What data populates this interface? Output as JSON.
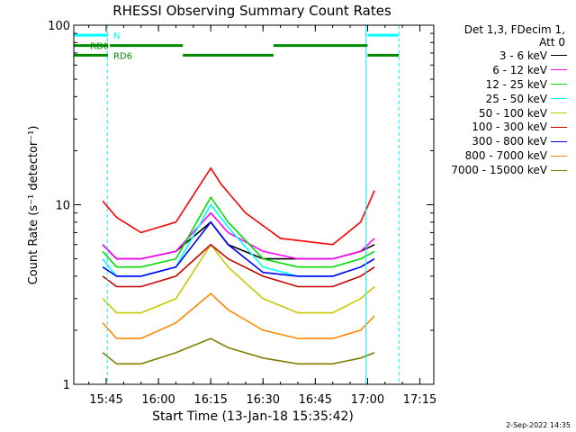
{
  "chart_data": {
    "type": "line",
    "title": "RHESSI Observing Summary Count Rates",
    "xlabel": "Start Time (13-Jan-18 15:35:42)",
    "ylabel": "Count Rate (s⁻¹ detector⁻¹)",
    "y_scale": "log",
    "ylim": [
      1,
      100
    ],
    "xlim": [
      "15:35:42",
      "17:19:00"
    ],
    "x_ticks": [
      "15:45",
      "16:00",
      "16:15",
      "16:30",
      "16:45",
      "17:00",
      "17:15"
    ],
    "y_ticks": [
      "1",
      "10",
      "100"
    ],
    "grid": false,
    "legend_position": "right",
    "legend_header": [
      "Det 1,3, FDecim 1,",
      "Att 0"
    ],
    "series": [
      {
        "name": "3 - 6 keV",
        "color": "#000000",
        "x": [
          "15:44",
          "15:48",
          "15:55",
          "16:05",
          "16:15",
          "16:20",
          "16:30",
          "16:40",
          "16:50",
          "16:58",
          "17:02"
        ],
        "values": [
          6,
          5,
          5,
          5.5,
          8,
          6,
          5,
          5,
          5,
          5.5,
          6
        ]
      },
      {
        "name": "6 - 12 keV",
        "color": "#ff00ff",
        "x": [
          "15:44",
          "15:48",
          "15:55",
          "16:05",
          "16:15",
          "16:20",
          "16:30",
          "16:40",
          "16:50",
          "16:58",
          "17:02"
        ],
        "values": [
          6,
          5,
          5,
          5.5,
          9,
          7,
          5.5,
          5,
          5,
          5.5,
          6.5
        ]
      },
      {
        "name": "12 - 25 keV",
        "color": "#00dd00",
        "x": [
          "15:44",
          "15:48",
          "15:55",
          "16:05",
          "16:15",
          "16:20",
          "16:30",
          "16:40",
          "16:50",
          "16:58",
          "17:02"
        ],
        "values": [
          5.5,
          4.5,
          4.5,
          5,
          11,
          8,
          5,
          4.5,
          4.5,
          5,
          5.5
        ]
      },
      {
        "name": "25 - 50 keV",
        "color": "#00ffff",
        "x": [
          "15:44",
          "15:48",
          "15:55",
          "16:05",
          "16:15",
          "16:20",
          "16:30",
          "16:40",
          "16:50",
          "16:58",
          "17:02"
        ],
        "values": [
          5,
          4,
          4,
          4.5,
          10,
          7.5,
          4.5,
          4,
          4,
          4.5,
          5
        ]
      },
      {
        "name": "50 - 100 keV",
        "color": "#c8c800",
        "x": [
          "15:44",
          "15:48",
          "15:55",
          "16:05",
          "16:15",
          "16:20",
          "16:30",
          "16:40",
          "16:50",
          "16:58",
          "17:02"
        ],
        "values": [
          3,
          2.5,
          2.5,
          3,
          6,
          4.5,
          3,
          2.5,
          2.5,
          3,
          3.5
        ]
      },
      {
        "name": "100 - 300 keV",
        "color": "#cc0000",
        "x": [
          "15:44",
          "15:48",
          "15:55",
          "16:05",
          "16:15",
          "16:20",
          "16:30",
          "16:40",
          "16:50",
          "16:58",
          "17:02"
        ],
        "values": [
          4,
          3.5,
          3.5,
          4,
          6,
          5,
          4,
          3.5,
          3.5,
          4,
          4.5
        ]
      },
      {
        "name": "300 - 800 keV",
        "color": "#0000ff",
        "x": [
          "15:44",
          "15:48",
          "15:55",
          "16:05",
          "16:15",
          "16:20",
          "16:30",
          "16:40",
          "16:50",
          "16:58",
          "17:02"
        ],
        "values": [
          4.5,
          4,
          4,
          4.5,
          8,
          6,
          4.2,
          4,
          4,
          4.5,
          5
        ]
      },
      {
        "name": "800 - 7000 keV",
        "color": "#ff8800",
        "x": [
          "15:44",
          "15:48",
          "15:55",
          "16:05",
          "16:15",
          "16:20",
          "16:30",
          "16:40",
          "16:50",
          "16:58",
          "17:02"
        ],
        "values": [
          2.2,
          1.8,
          1.8,
          2.2,
          3.2,
          2.6,
          2,
          1.8,
          1.8,
          2,
          2.4
        ]
      },
      {
        "name": "7000 - 15000 keV",
        "color": "#808000",
        "x": [
          "15:44",
          "15:48",
          "15:55",
          "16:05",
          "16:15",
          "16:20",
          "16:30",
          "16:40",
          "16:50",
          "16:58",
          "17:02"
        ],
        "values": [
          1.5,
          1.3,
          1.3,
          1.5,
          1.8,
          1.6,
          1.4,
          1.3,
          1.3,
          1.4,
          1.5
        ]
      },
      {
        "name": "",
        "color": "#ff0000",
        "x": [
          "15:44",
          "15:48",
          "15:55",
          "16:05",
          "16:12",
          "16:15",
          "16:18",
          "16:25",
          "16:35",
          "16:50",
          "16:58",
          "17:02"
        ],
        "values": [
          10.5,
          8.5,
          7,
          8,
          13,
          16,
          13,
          9,
          6.5,
          6,
          8,
          12
        ]
      }
    ],
    "annotations": [
      {
        "label": "N",
        "color": "#00ffff",
        "segments": [
          [
            "15:35:42",
            "15:45:30"
          ],
          [
            "17:00:00",
            "17:09:00"
          ]
        ],
        "y": 88
      },
      {
        "label": "RD0",
        "color": "#008800",
        "segments": [
          [
            "15:35:42",
            "15:45:30"
          ],
          [
            "15:46:00",
            "16:07:00"
          ],
          [
            "16:33:00",
            "17:00:00"
          ]
        ],
        "y": 77
      },
      {
        "label": "RD6",
        "color": "#008800",
        "segments": [
          [
            "15:35:42",
            "15:45:30"
          ],
          [
            "16:07:00",
            "16:33:00"
          ],
          [
            "17:00:00",
            "17:09:00"
          ]
        ],
        "y": 68
      }
    ],
    "vlines": [
      {
        "x": "15:45:20",
        "color": "#00ffff",
        "style": "dashed"
      },
      {
        "x": "16:59:30",
        "color": "#00ffff",
        "style": "solid"
      },
      {
        "x": "17:09:00",
        "color": "#00ffff",
        "style": "dashed"
      }
    ]
  },
  "footer_stamp": "2-Sep-2022 14:35"
}
